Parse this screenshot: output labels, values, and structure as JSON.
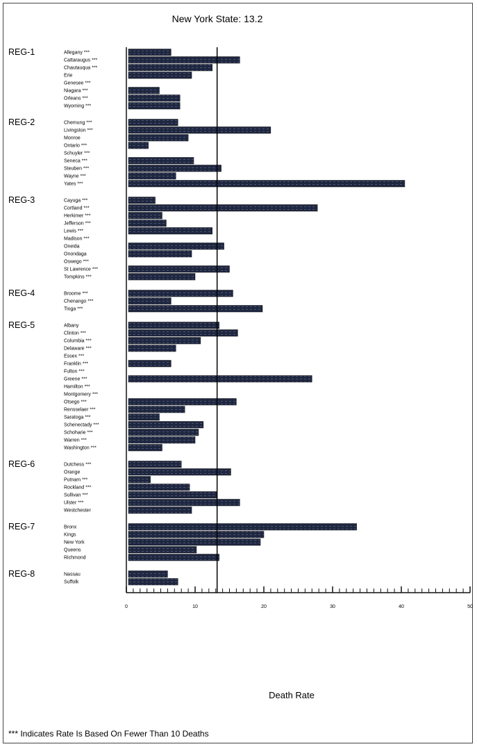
{
  "chart_data": {
    "type": "bar",
    "orientation": "horizontal",
    "title": "New York State:  13.2",
    "reference_value": 13.2,
    "xlabel": "Death Rate",
    "xlim": [
      0,
      50
    ],
    "x_ticks": [
      "0",
      "10",
      "20",
      "30",
      "40",
      "50"
    ],
    "footnote": "*** Indicates Rate Is Based On Fewer Than 10 Deaths",
    "groups": [
      {
        "name": "REG-1",
        "counties": [
          {
            "name": "Allegany ***",
            "value": 6.5
          },
          {
            "name": "Cattaraugus ***",
            "value": 16.5
          },
          {
            "name": "Chautauqua ***",
            "value": 12.5
          },
          {
            "name": "Erie",
            "value": 9.5
          },
          {
            "name": "Genesee ***",
            "value": null
          },
          {
            "name": "Niagara ***",
            "value": 4.8
          },
          {
            "name": "Orleans ***",
            "value": 7.8
          },
          {
            "name": "Wyoming ***",
            "value": 7.8
          }
        ]
      },
      {
        "name": "REG-2",
        "counties": [
          {
            "name": "Chemung ***",
            "value": 7.5
          },
          {
            "name": "Livingston ***",
            "value": 21.0
          },
          {
            "name": "Monroe",
            "value": 9.0
          },
          {
            "name": "Ontario ***",
            "value": 3.2
          },
          {
            "name": "Schuyler ***",
            "value": null
          },
          {
            "name": "Seneca ***",
            "value": 9.8
          },
          {
            "name": "Steuben ***",
            "value": 13.8
          },
          {
            "name": "Wayne ***",
            "value": 7.2
          },
          {
            "name": "Yates ***",
            "value": 40.5
          }
        ]
      },
      {
        "name": "REG-3",
        "counties": [
          {
            "name": "Cayuga ***",
            "value": 4.2
          },
          {
            "name": "Cortland ***",
            "value": 27.8
          },
          {
            "name": "Herkimer ***",
            "value": 5.2
          },
          {
            "name": "Jefferson ***",
            "value": 5.8
          },
          {
            "name": "Lewis ***",
            "value": 12.5
          },
          {
            "name": "Madison ***",
            "value": null
          },
          {
            "name": "Oneida",
            "value": 14.2
          },
          {
            "name": "Onondaga",
            "value": 9.5
          },
          {
            "name": "Oswego ***",
            "value": null
          },
          {
            "name": "St Lawrence ***",
            "value": 15.0
          },
          {
            "name": "Tompkins ***",
            "value": 10.0
          }
        ]
      },
      {
        "name": "REG-4",
        "counties": [
          {
            "name": "Broome ***",
            "value": 15.5
          },
          {
            "name": "Chenango ***",
            "value": 6.5
          },
          {
            "name": "Tioga ***",
            "value": 19.8
          }
        ]
      },
      {
        "name": "REG-5",
        "counties": [
          {
            "name": "Albany",
            "value": 13.5
          },
          {
            "name": "Clinton ***",
            "value": 16.2
          },
          {
            "name": "Columbia ***",
            "value": 10.8
          },
          {
            "name": "Delaware ***",
            "value": 7.2
          },
          {
            "name": "Essex ***",
            "value": null
          },
          {
            "name": "Franklin ***",
            "value": 6.5
          },
          {
            "name": "Fulton ***",
            "value": null
          },
          {
            "name": "Greene ***",
            "value": 27.0
          },
          {
            "name": "Hamilton ***",
            "value": null
          },
          {
            "name": "Montgomery ***",
            "value": null
          },
          {
            "name": "Otsego ***",
            "value": 16.0
          },
          {
            "name": "Rensselaer ***",
            "value": 8.5
          },
          {
            "name": "Saratoga ***",
            "value": 4.8
          },
          {
            "name": "Schenectady ***",
            "value": 11.2
          },
          {
            "name": "Schoharie ***",
            "value": 10.5
          },
          {
            "name": "Warren ***",
            "value": 10.0
          },
          {
            "name": "Washington ***",
            "value": 5.2
          }
        ]
      },
      {
        "name": "REG-6",
        "counties": [
          {
            "name": "Dutchess ***",
            "value": 8.0
          },
          {
            "name": "Orange",
            "value": 15.2
          },
          {
            "name": "Putnam ***",
            "value": 3.5
          },
          {
            "name": "Rockland ***",
            "value": 9.2
          },
          {
            "name": "Sullivan ***",
            "value": 13.2
          },
          {
            "name": "Ulster ***",
            "value": 16.5
          },
          {
            "name": "Westchester",
            "value": 9.5
          }
        ]
      },
      {
        "name": "REG-7",
        "counties": [
          {
            "name": "Bronx",
            "value": 33.5
          },
          {
            "name": "Kings",
            "value": 20.0
          },
          {
            "name": "New York",
            "value": 19.5
          },
          {
            "name": "Queens",
            "value": 10.2
          },
          {
            "name": "Richmond",
            "value": 13.5
          }
        ]
      },
      {
        "name": "REG-8",
        "counties": [
          {
            "name": "Nassau",
            "value": 6.0
          },
          {
            "name": "Suffolk",
            "value": 7.5
          }
        ]
      }
    ]
  }
}
